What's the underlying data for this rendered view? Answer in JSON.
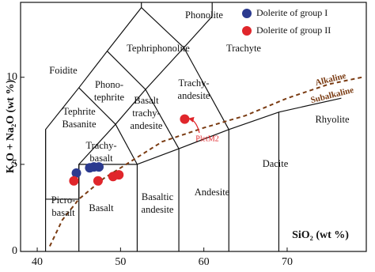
{
  "chart_data": {
    "type": "scatter",
    "x_label": "SiO₂ (wt %)",
    "y_label": "K₂O + Na₂O (wt %)",
    "xlim": [
      38,
      79.5
    ],
    "ylim": [
      0,
      14.3
    ],
    "xticks": [
      40,
      50,
      60,
      70
    ],
    "yticks": [
      0,
      5,
      10
    ],
    "legend": "upper right",
    "series": [
      {
        "name": "Dolerite of group I",
        "color": "#2b3a8f",
        "x": [
          44.7,
          46.3,
          46.8,
          47.4
        ],
        "y": [
          4.5,
          4.8,
          4.85,
          4.85
        ]
      },
      {
        "name": "Dolerite of group II",
        "color": "#e0262b",
        "x": [
          44.4,
          47.3,
          49.1,
          49.8,
          57.7
        ],
        "y": [
          4.05,
          4.05,
          4.3,
          4.4,
          7.6
        ]
      }
    ],
    "field_labels": [
      [
        "Phonolite"
      ],
      [
        "Tephriphonolite"
      ],
      [
        "Trachyte"
      ],
      [
        "Foidite"
      ],
      [
        "Phono-",
        "tephrite"
      ],
      [
        "Trachy-",
        "andesite"
      ],
      [
        "Tephrite",
        "Basanite"
      ],
      [
        "Basalt",
        "trachy-",
        "andesite"
      ],
      [
        "Trachy-",
        "basalt"
      ],
      [
        "Rhyolite"
      ],
      [
        "Dacite"
      ],
      [
        "Picro-",
        "basalt"
      ],
      [
        "Basalt"
      ],
      [
        "Basaltic",
        "andesite"
      ],
      [
        "Andesite"
      ]
    ],
    "series_labels": [
      "Alkaline",
      "Subalkaline"
    ],
    "annotation": "PletM2"
  }
}
